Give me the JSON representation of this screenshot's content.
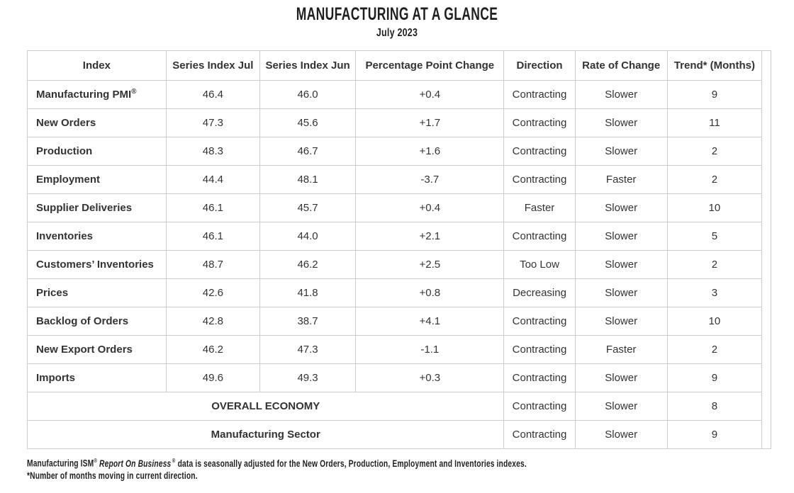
{
  "header": {
    "title": "MANUFACTURING AT A GLANCE",
    "subtitle": "July 2023"
  },
  "table": {
    "columns": [
      "Index",
      "Series Index Jul",
      "Series Index Jun",
      "Percentage Point Change",
      "Direction",
      "Rate of Change",
      "Trend* (Months)"
    ],
    "rows": [
      {
        "index": "Manufacturing PMI",
        "sup": "®",
        "jul": "46.4",
        "jun": "46.0",
        "change": "+0.4",
        "direction": "Contracting",
        "rate": "Slower",
        "trend": "9"
      },
      {
        "index": "New Orders",
        "jul": "47.3",
        "jun": "45.6",
        "change": "+1.7",
        "direction": "Contracting",
        "rate": "Slower",
        "trend": "11"
      },
      {
        "index": "Production",
        "jul": "48.3",
        "jun": "46.7",
        "change": "+1.6",
        "direction": "Contracting",
        "rate": "Slower",
        "trend": "2"
      },
      {
        "index": "Employment",
        "jul": "44.4",
        "jun": "48.1",
        "change": "-3.7",
        "direction": "Contracting",
        "rate": "Faster",
        "trend": "2"
      },
      {
        "index": "Supplier Deliveries",
        "jul": "46.1",
        "jun": "45.7",
        "change": "+0.4",
        "direction": "Faster",
        "rate": "Slower",
        "trend": "10"
      },
      {
        "index": "Inventories",
        "jul": "46.1",
        "jun": "44.0",
        "change": "+2.1",
        "direction": "Contracting",
        "rate": "Slower",
        "trend": "5"
      },
      {
        "index": "Customers’ Inventories",
        "jul": "48.7",
        "jun": "46.2",
        "change": "+2.5",
        "direction": "Too Low",
        "rate": "Slower",
        "trend": "2"
      },
      {
        "index": "Prices",
        "jul": "42.6",
        "jun": "41.8",
        "change": "+0.8",
        "direction": "Decreasing",
        "rate": "Slower",
        "trend": "3"
      },
      {
        "index": "Backlog of Orders",
        "jul": "42.8",
        "jun": "38.7",
        "change": "+4.1",
        "direction": "Contracting",
        "rate": "Slower",
        "trend": "10"
      },
      {
        "index": "New Export Orders",
        "jul": "46.2",
        "jun": "47.3",
        "change": "-1.1",
        "direction": "Contracting",
        "rate": "Faster",
        "trend": "2"
      },
      {
        "index": "Imports",
        "jul": "49.6",
        "jun": "49.3",
        "change": "+0.3",
        "direction": "Contracting",
        "rate": "Slower",
        "trend": "9"
      }
    ],
    "summary_rows": [
      {
        "label": "OVERALL ECONOMY",
        "direction": "Contracting",
        "rate": "Slower",
        "trend": "8"
      },
      {
        "label": "Manufacturing Sector",
        "direction": "Contracting",
        "rate": "Slower",
        "trend": "9"
      }
    ]
  },
  "footnotes": {
    "line1": {
      "seg1": "Manufacturing ISM",
      "sup1": "®",
      "seg2_italic": "Report On Business",
      "sup2": "®",
      "seg3": "data is seasonally adjusted for the New Orders, Production, Employment and Inventories indexes."
    },
    "line2": "*Number of months moving in current direction."
  },
  "colors": {
    "border": "#cccccc",
    "body_text": "#333333",
    "title_text": "#1f1f1f"
  }
}
